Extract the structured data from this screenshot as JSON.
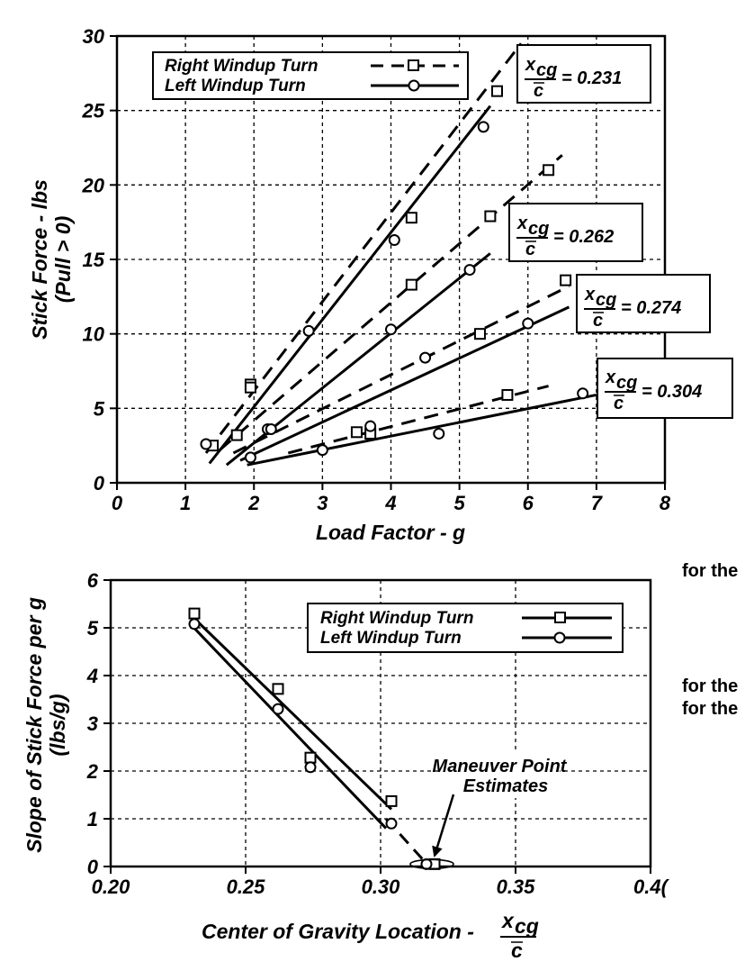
{
  "chart_data": [
    {
      "type": "line",
      "xlabel": "Load Factor - g",
      "ylabel": "Stick Force - lbs",
      "ylabel2": "(Pull > 0)",
      "xlim": [
        0,
        8
      ],
      "ylim": [
        0,
        30
      ],
      "xticks": [
        "0",
        "1",
        "2",
        "3",
        "4",
        "5",
        "6",
        "7",
        "8"
      ],
      "yticks": [
        "0",
        "5",
        "10",
        "15",
        "20",
        "25",
        "30"
      ],
      "grid": true,
      "legend_position": "top-left",
      "series": [
        {
          "name": "Right Windup Turn",
          "style": "dashed",
          "marker": "square",
          "group": "x_cg/c = 0.231",
          "points": [
            [
              1.4,
              2.5
            ],
            [
              1.95,
              6.6
            ],
            [
              4.3,
              17.8
            ],
            [
              5.55,
              26.3
            ]
          ],
          "fit": [
            [
              1.3,
              2.0
            ],
            [
              5.9,
              29.5
            ]
          ]
        },
        {
          "name": "Left Windup Turn",
          "style": "solid",
          "marker": "circle",
          "group": "x_cg/c = 0.231",
          "points": [
            [
              1.3,
              2.6
            ],
            [
              2.8,
              10.2
            ],
            [
              4.05,
              16.3
            ],
            [
              5.35,
              23.9
            ]
          ],
          "fit": [
            [
              1.35,
              1.3
            ],
            [
              5.45,
              25.3
            ]
          ]
        },
        {
          "name": "Right Windup Turn",
          "style": "dashed",
          "marker": "square",
          "group": "x_cg/c = 0.262",
          "points": [
            [
              1.95,
              6.4
            ],
            [
              4.3,
              13.3
            ],
            [
              5.45,
              17.9
            ],
            [
              6.3,
              21.0
            ]
          ],
          "fit": [
            [
              1.5,
              2.2
            ],
            [
              6.5,
              22.0
            ]
          ]
        },
        {
          "name": "Left Windup Turn",
          "style": "solid",
          "marker": "circle",
          "group": "x_cg/c = 0.262",
          "points": [
            [
              2.2,
              3.6
            ],
            [
              4.0,
              10.3
            ],
            [
              5.15,
              14.3
            ]
          ],
          "fit": [
            [
              1.6,
              1.2
            ],
            [
              5.45,
              15.4
            ]
          ]
        },
        {
          "name": "Right Windup Turn",
          "style": "dashed",
          "marker": "square",
          "group": "x_cg/c = 0.274",
          "points": [
            [
              1.75,
              3.2
            ],
            [
              5.3,
              10.0
            ],
            [
              6.55,
              13.6
            ]
          ],
          "fit": [
            [
              1.7,
              2.0
            ],
            [
              6.6,
              13.2
            ]
          ]
        },
        {
          "name": "Left Windup Turn",
          "style": "solid",
          "marker": "circle",
          "group": "x_cg/c = 0.274",
          "points": [
            [
              1.95,
              1.7
            ],
            [
              2.25,
              3.6
            ],
            [
              4.5,
              8.4
            ],
            [
              6.0,
              10.7
            ]
          ],
          "fit": [
            [
              1.8,
              1.5
            ],
            [
              6.6,
              11.8
            ]
          ]
        },
        {
          "name": "Right Windup Turn",
          "style": "dashed",
          "marker": "square",
          "group": "x_cg/c = 0.304",
          "points": [
            [
              3.5,
              3.4
            ],
            [
              3.7,
              3.3
            ],
            [
              5.7,
              5.9
            ]
          ],
          "fit": [
            [
              2.5,
              2.0
            ],
            [
              6.3,
              6.5
            ]
          ]
        },
        {
          "name": "Left Windup Turn",
          "style": "solid",
          "marker": "circle",
          "group": "x_cg/c = 0.304",
          "points": [
            [
              3.0,
              2.2
            ],
            [
              3.7,
              3.8
            ],
            [
              4.7,
              3.3
            ],
            [
              6.8,
              6.0
            ]
          ],
          "fit": [
            [
              1.9,
              1.2
            ],
            [
              7.0,
              5.9
            ]
          ]
        }
      ],
      "annotations": [
        {
          "label_num": "x",
          "label_sub": "cg",
          "label_den": "c",
          "value": "= 0.231"
        },
        {
          "label_num": "x",
          "label_sub": "cg",
          "label_den": "c",
          "value": "= 0.262"
        },
        {
          "label_num": "x",
          "label_sub": "cg",
          "label_den": "c",
          "value": "= 0.274"
        },
        {
          "label_num": "x",
          "label_sub": "cg",
          "label_den": "c",
          "value": "= 0.304"
        }
      ]
    },
    {
      "type": "line",
      "xlabel": "Center of Gravity Location -",
      "xlabel_frac_num": "x",
      "xlabel_frac_sub": "cg",
      "xlabel_frac_den": "c",
      "ylabel": "Slope of Stick Force per g",
      "ylabel2": "(lbs/g)",
      "xlim": [
        0.2,
        0.4
      ],
      "ylim": [
        0,
        6
      ],
      "xticks": [
        "0.20",
        "0.25",
        "0.30",
        "0.35",
        "0.4("
      ],
      "yticks": [
        "0",
        "1",
        "2",
        "3",
        "4",
        "5",
        "6"
      ],
      "grid": true,
      "legend_position": "top-right",
      "series": [
        {
          "name": "Right Windup Turn",
          "style": "solid",
          "marker": "square",
          "x": [
            0.231,
            0.262,
            0.274,
            0.304,
            0.32
          ],
          "y": [
            5.3,
            3.72,
            2.28,
            1.37,
            0.05
          ]
        },
        {
          "name": "Left Windup Turn",
          "style": "solid",
          "marker": "circle",
          "x": [
            0.231,
            0.262,
            0.274,
            0.304,
            0.317
          ],
          "y": [
            5.08,
            3.3,
            2.08,
            0.9,
            0.05
          ]
        }
      ],
      "fit_lines": [
        {
          "name": "Right Windup Turn",
          "from": [
            0.23,
            5.25
          ],
          "to": [
            0.304,
            1.2
          ]
        },
        {
          "name": "Left Windup Turn",
          "from": [
            0.23,
            5.05
          ],
          "to": [
            0.302,
            0.8
          ]
        }
      ],
      "extrapolation": {
        "style": "dashed",
        "from": [
          0.302,
          1.0
        ],
        "to": [
          0.318,
          0.0
        ]
      },
      "annotation": {
        "line1": "Maneuver Point",
        "line2": "Estimates",
        "points_to_x": 0.319
      }
    }
  ],
  "page_fragments": [
    "for the",
    "for the",
    "for the"
  ]
}
